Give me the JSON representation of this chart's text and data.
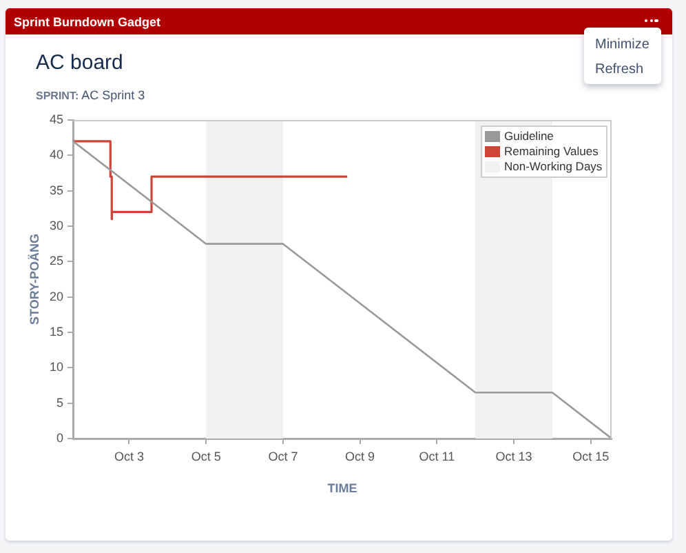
{
  "chart_data": {
    "type": "line",
    "title": "AC board",
    "subtitle": "SPRINT: AC Sprint 3",
    "xlabel": "TIME",
    "ylabel": "STORY-POÄNG",
    "annotations": [
      "Sprint Burndown Gadget",
      "Minimize",
      "Refresh"
    ],
    "series": [
      {
        "name": "Guideline",
        "type": "line",
        "color": "#999999",
        "x": [
          "--10-01T13:00",
          "--10-05T00:00",
          "--10-07T00:00",
          "--10-12T00:00",
          "--10-14T00:00",
          "--10-15T13:00"
        ],
        "values": [
          42,
          27.5,
          27.5,
          6.5,
          6.5,
          0
        ]
      },
      {
        "name": "Remaining Values",
        "type": "step",
        "color": "#d04437",
        "x": [
          "--10-01T13:00",
          "--10-02T12:20",
          "--10-02T13:10",
          "--10-02T13:15",
          "--10-03T14:00",
          "--10-08T15:30"
        ],
        "values": [
          42,
          37,
          31,
          32,
          37,
          37
        ]
      }
    ],
    "bands": [
      {
        "axis": "x",
        "from": "--10-05T00:00",
        "to": "--10-07T00:00",
        "color": "#f1f1f1"
      },
      {
        "axis": "x",
        "from": "--10-12T00:00",
        "to": "--10-14T00:00",
        "label": "Non-Working Days",
        "color": "#f1f1f1"
      }
    ],
    "xlim": [
      "--10-01T13:00",
      "--10-15T13:00"
    ],
    "xticks": [
      {
        "value": "--10-03T00:00",
        "label": "Oct 3"
      },
      {
        "value": "--10-05T00:00",
        "label": "Oct 5"
      },
      {
        "value": "--10-07T00:00",
        "label": "Oct 7"
      },
      {
        "value": "--10-09T00:00",
        "label": "Oct 9"
      },
      {
        "value": "--10-11T00:00",
        "label": "Oct 11"
      },
      {
        "value": "--10-13T00:00",
        "label": "Oct 13"
      },
      {
        "value": "--10-15T00:00",
        "label": "Oct 15"
      }
    ],
    "ylim": [
      0,
      45
    ],
    "yticks": [
      0,
      5,
      10,
      15,
      20,
      25,
      30,
      35,
      40,
      45
    ],
    "grid": false,
    "legend": "top right",
    "marker": "none"
  }
}
